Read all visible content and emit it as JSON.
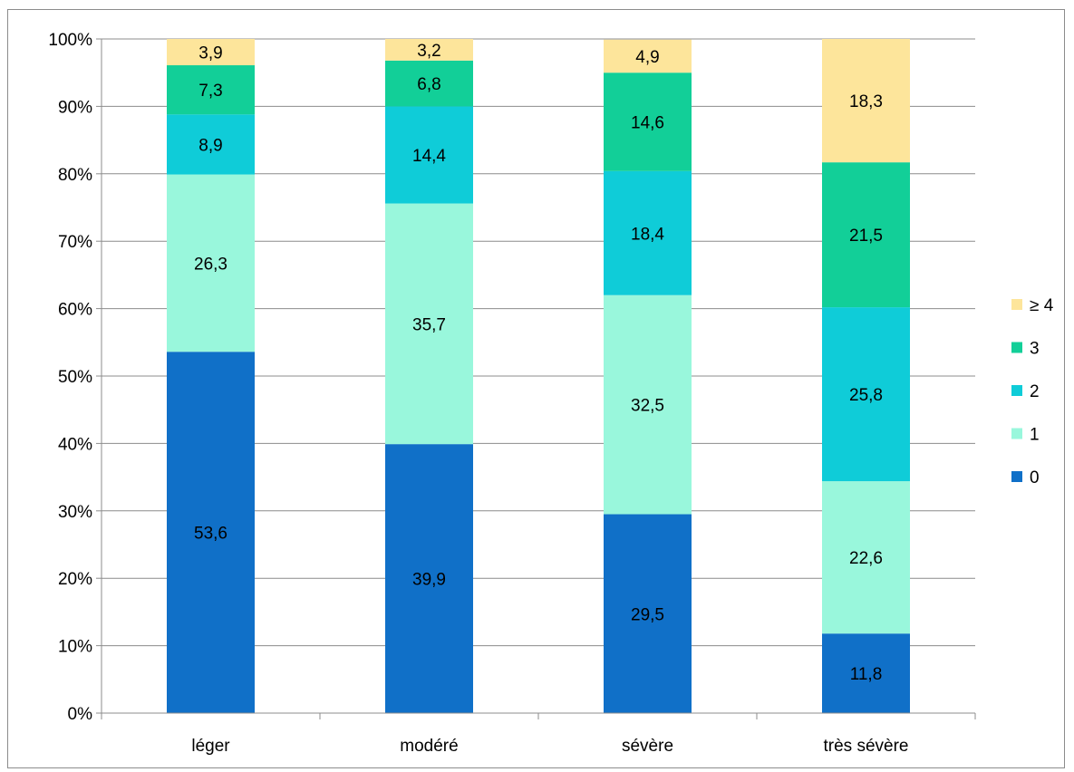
{
  "chart_data": {
    "type": "bar",
    "stacked": "percent",
    "categories": [
      "léger",
      "modéré",
      "sévère",
      "très sévère"
    ],
    "series": [
      {
        "name": "0",
        "color": "#1070C8",
        "values": [
          53.6,
          39.9,
          29.5,
          11.8
        ]
      },
      {
        "name": "1",
        "color": "#99F7DC",
        "values": [
          26.3,
          35.7,
          32.5,
          22.6
        ]
      },
      {
        "name": "2",
        "color": "#0FCCD8",
        "values": [
          8.9,
          14.4,
          18.4,
          25.8
        ]
      },
      {
        "name": "3",
        "color": "#12CF98",
        "values": [
          7.3,
          6.8,
          14.6,
          21.5
        ]
      },
      {
        "name": "≥ 4",
        "color": "#FDE59B",
        "values": [
          3.9,
          3.2,
          4.9,
          18.3
        ]
      }
    ],
    "data_labels": [
      [
        "53,6",
        "39,9",
        "29,5",
        "11,8"
      ],
      [
        "26,3",
        "35,7",
        "32,5",
        "22,6"
      ],
      [
        "8,9",
        "14,4",
        "18,4",
        "25,8"
      ],
      [
        "7,3",
        "6,8",
        "14,6",
        "21,5"
      ],
      [
        "3,9",
        "3,2",
        "4,9",
        "18,3"
      ]
    ],
    "y_ticks": [
      "0%",
      "10%",
      "20%",
      "30%",
      "40%",
      "50%",
      "60%",
      "70%",
      "80%",
      "90%",
      "100%"
    ],
    "ylim": [
      0,
      100
    ],
    "grid": true,
    "legend": "right",
    "title": "",
    "xlabel": "",
    "ylabel": ""
  }
}
